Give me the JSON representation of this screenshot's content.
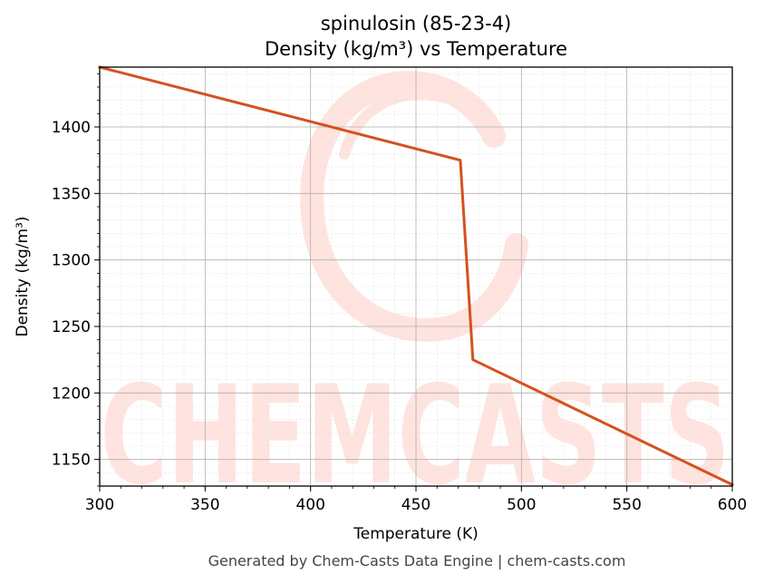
{
  "chart_data": {
    "type": "line",
    "title_line1": "spinulosin (85-23-4)",
    "title_line2": "Density (kg/m³) vs Temperature",
    "xlabel": "Temperature (K)",
    "ylabel": "Density (kg/m³)",
    "xlim": [
      300,
      600
    ],
    "ylim": [
      1130,
      1445
    ],
    "x_ticks": [
      300,
      350,
      400,
      450,
      500,
      550,
      600
    ],
    "y_ticks": [
      1150,
      1200,
      1250,
      1300,
      1350,
      1400
    ],
    "grid": true,
    "series": [
      {
        "color": "#d4521f",
        "x": [
          300,
          471,
          477,
          600
        ],
        "y": [
          1445,
          1375,
          1225,
          1131
        ]
      }
    ]
  },
  "watermark": {
    "text": "CHEMCASTS",
    "color": "#ffe3de"
  },
  "footer": "Generated by Chem-Casts Data Engine | chem-casts.com"
}
